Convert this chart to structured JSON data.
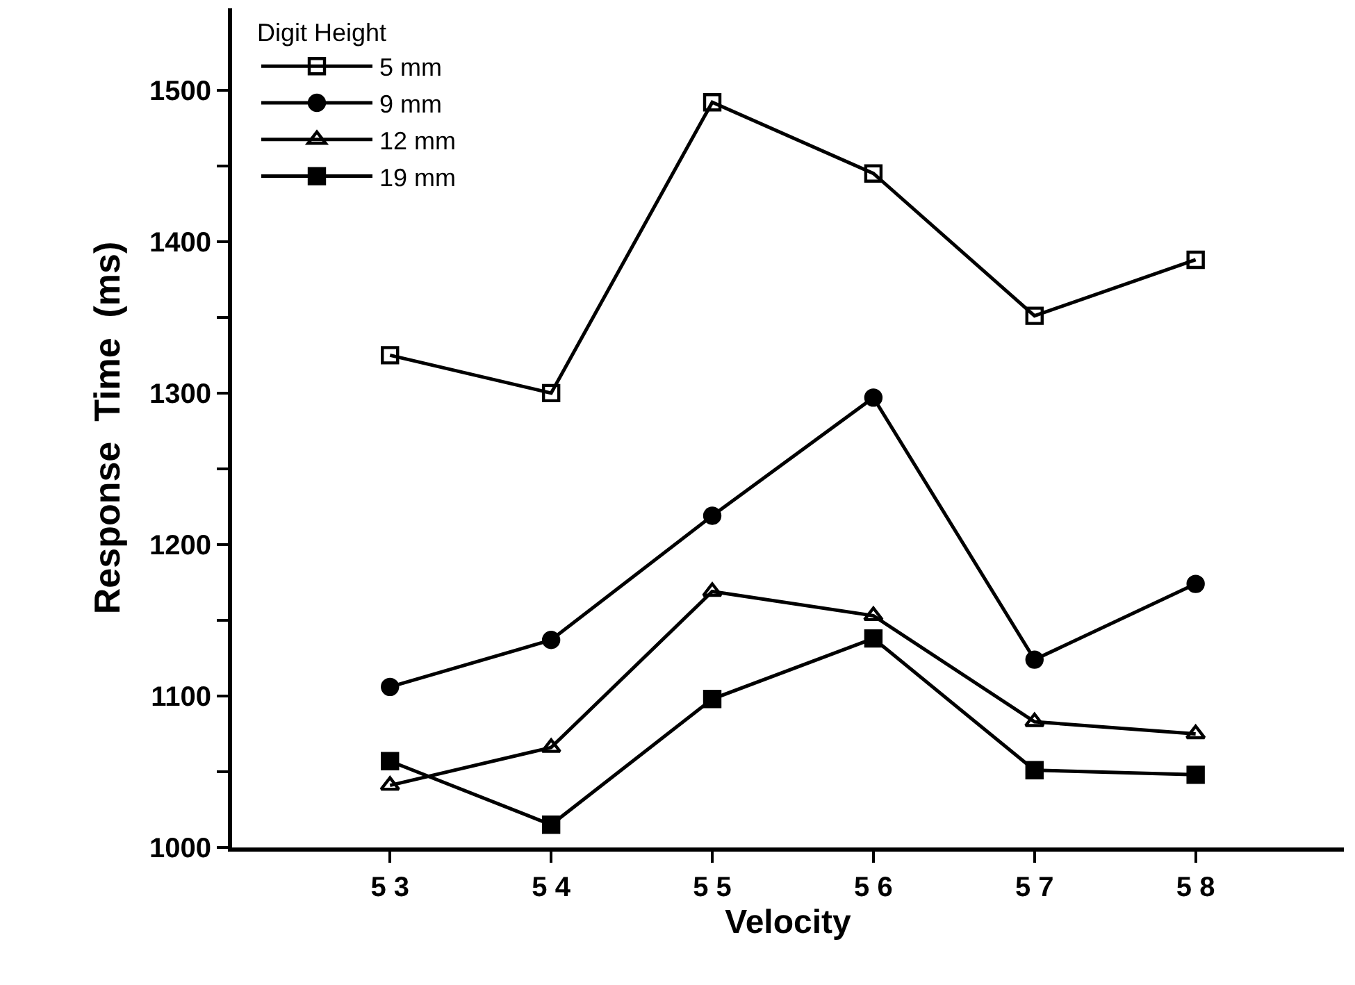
{
  "chart_data": {
    "type": "line",
    "xlabel": "Velocity",
    "ylabel": "Response  Time  (ms)",
    "legend_title": "Digit Height",
    "legend": "top left",
    "line_style": "solid",
    "categories": [
      "5 3",
      "5 4",
      "5 5",
      "5 6",
      "5 7",
      "5 8"
    ],
    "ylim": [
      1000,
      1554
    ],
    "yticks": [
      1000,
      {
        "value": 1050,
        "label": null
      },
      1100,
      {
        "value": 1150,
        "label": null
      },
      1200,
      {
        "value": 1250,
        "label": null
      },
      1300,
      {
        "value": 1350,
        "label": null
      },
      1400,
      {
        "value": 1450,
        "label": null
      },
      1500
    ],
    "series": [
      {
        "name": "5 mm",
        "color": "#000000",
        "marker": "square-open",
        "values": [
          1325,
          1300,
          1492,
          1445,
          1351,
          1388
        ]
      },
      {
        "name": "9 mm",
        "color": "#000000",
        "marker": "circle",
        "values": [
          1106,
          1137,
          1219,
          1297,
          1124,
          1174
        ]
      },
      {
        "name": "12 mm",
        "color": "#000000",
        "marker": "triangle-open",
        "values": [
          1041,
          1066,
          1169,
          1153,
          1083,
          1075
        ]
      },
      {
        "name": "19 mm",
        "color": "#000000",
        "marker": "square",
        "values": [
          1057,
          1015,
          1098,
          1138,
          1051,
          1048
        ]
      }
    ]
  }
}
